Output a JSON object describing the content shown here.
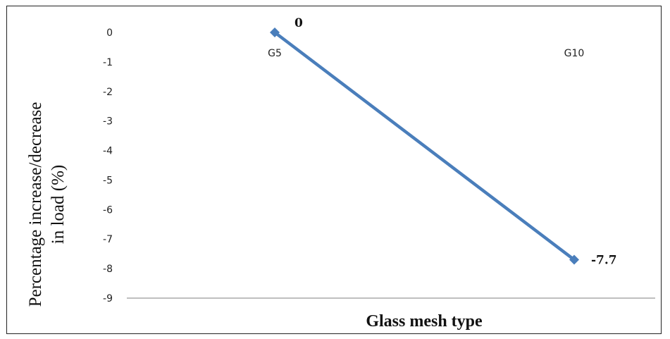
{
  "chart_data": {
    "type": "line",
    "categories": [
      "G5",
      "G10"
    ],
    "series": [
      {
        "values": [
          0,
          -7.7
        ],
        "color": "#4a7ebb"
      }
    ],
    "data_labels": [
      "0",
      "-7.7"
    ],
    "xlabel": "Glass mesh type",
    "ylabel_lines": [
      "Percentage increase/decrease",
      "in load (%)"
    ],
    "ylim": [
      -9,
      0
    ],
    "yticks": [
      "0",
      "-1",
      "-2",
      "-3",
      "-4",
      "-5",
      "-6",
      "-7",
      "-8",
      "-9"
    ],
    "grid": false,
    "legend": "none"
  }
}
